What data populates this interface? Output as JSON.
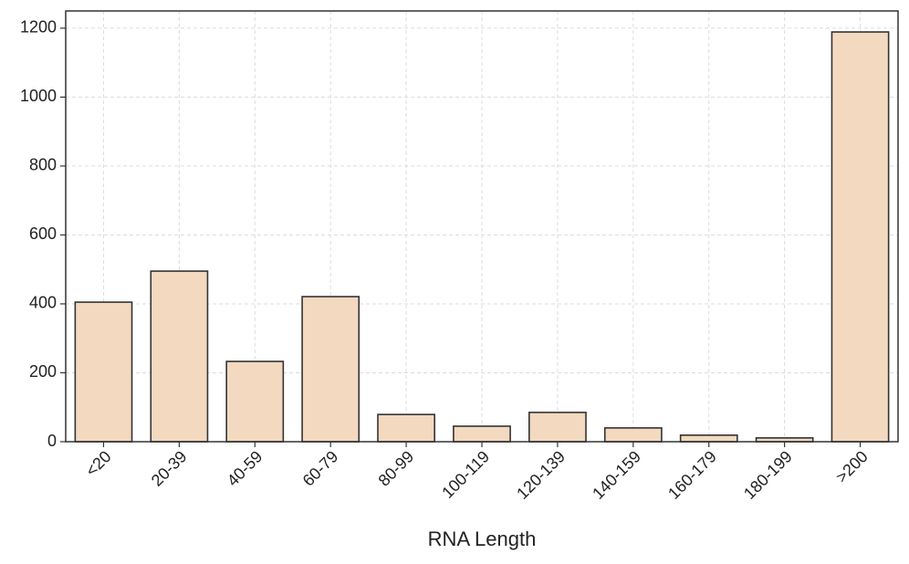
{
  "chart_data": {
    "type": "bar",
    "xlabel": "RNA Length",
    "categories": [
      "<20",
      "20-39",
      "40-59",
      "60-79",
      "80-99",
      "100-119",
      "120-139",
      "140-159",
      "160-179",
      "180-199",
      ">200"
    ],
    "values": [
      405,
      495,
      233,
      421,
      79,
      45,
      85,
      40,
      19,
      11,
      1189
    ],
    "color": "#f2d9c0",
    "edgecolor": "#333333",
    "ylim": [
      0,
      1250
    ],
    "yticks": [
      0,
      200,
      400,
      600,
      800,
      1000,
      1200
    ],
    "grid": true
  }
}
